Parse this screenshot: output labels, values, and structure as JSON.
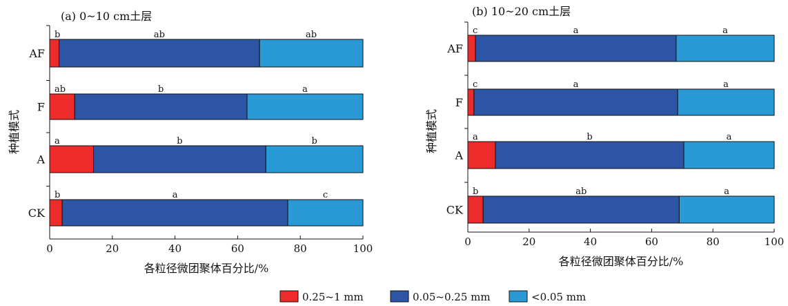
{
  "colors": {
    "c1": "#ee2b2b",
    "c2": "#2d55a6",
    "c3": "#2a9ad6",
    "outline": "#111111"
  },
  "legend": {
    "items": [
      {
        "label": "0.25~1 mm",
        "color": "#ee2b2b"
      },
      {
        "label": "0.05~0.25 mm",
        "color": "#2d55a6"
      },
      {
        "label": "<0.05 mm",
        "color": "#2a9ad6"
      }
    ]
  },
  "chart_data": [
    {
      "type": "bar",
      "orientation": "horizontal",
      "stacked": true,
      "title": "(a) 0~10 cm土层",
      "xlabel": "各粒径微团聚体百分比/%",
      "ylabel": "种植模式",
      "xlim": [
        0,
        100
      ],
      "xticks": [
        0,
        20,
        40,
        60,
        80,
        100
      ],
      "categories": [
        "AF",
        "F",
        "A",
        "CK"
      ],
      "series": [
        {
          "name": "0.25~1 mm",
          "values": [
            3,
            8,
            14,
            4
          ]
        },
        {
          "name": "0.05~0.25 mm",
          "values": [
            64,
            55,
            55,
            72
          ]
        },
        {
          "name": "<0.05 mm",
          "values": [
            33,
            37,
            31,
            24
          ]
        }
      ],
      "letters": [
        [
          "b",
          "ab",
          "ab"
        ],
        [
          "ab",
          "b",
          "a"
        ],
        [
          "a",
          "b",
          "b"
        ],
        [
          "b",
          "a",
          "c"
        ]
      ]
    },
    {
      "type": "bar",
      "orientation": "horizontal",
      "stacked": true,
      "title": "(b) 10~20 cm土层",
      "xlabel": "各粒径微团聚体百分比/%",
      "ylabel": "种植模式",
      "xlim": [
        0,
        100
      ],
      "xticks": [
        0,
        20,
        40,
        60,
        80,
        100
      ],
      "categories": [
        "AF",
        "F",
        "A",
        "CK"
      ],
      "series": [
        {
          "name": "0.25~1 mm",
          "values": [
            2.5,
            2,
            9,
            5
          ]
        },
        {
          "name": "0.05~0.25 mm",
          "values": [
            65.5,
            66.5,
            61.5,
            64
          ]
        },
        {
          "name": "<0.05 mm",
          "values": [
            32,
            31.5,
            29.5,
            31
          ]
        }
      ],
      "letters": [
        [
          "c",
          "a",
          "a"
        ],
        [
          "c",
          "a",
          "a"
        ],
        [
          "a",
          "b",
          "a"
        ],
        [
          "b",
          "ab",
          "a"
        ]
      ]
    }
  ]
}
